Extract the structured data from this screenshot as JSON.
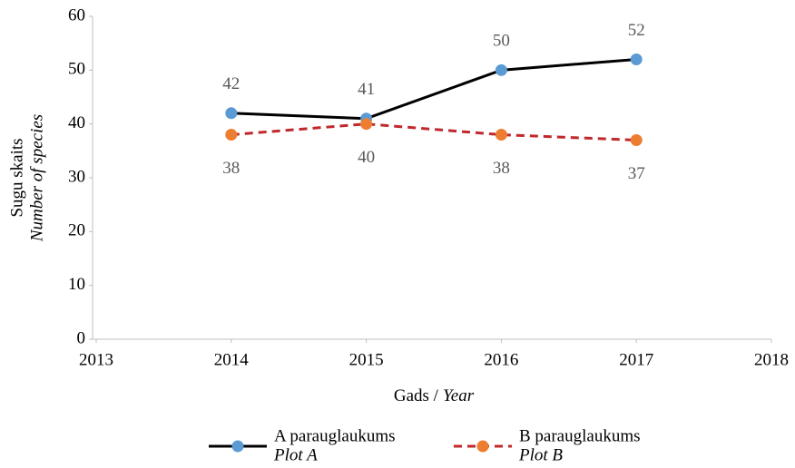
{
  "chart_data": {
    "type": "line",
    "ylabel": [
      "Sugu skaits",
      "Number of species"
    ],
    "xlabel": [
      "Gads /",
      "Year"
    ],
    "x": [
      2014,
      2015,
      2016,
      2017
    ],
    "xlim": [
      2013,
      2018
    ],
    "xticks": [
      2013,
      2014,
      2015,
      2016,
      2017,
      2018
    ],
    "ylim": [
      0,
      60
    ],
    "yticks": [
      0,
      10,
      20,
      30,
      40,
      50,
      60
    ],
    "grid": false,
    "legend": "bottom",
    "series": [
      {
        "name": "A parauglaukums",
        "subname": "Plot A",
        "color": "#000000",
        "marker_color": "#5b9bd5",
        "dash": false,
        "label_position": "above",
        "values": [
          42,
          41,
          50,
          52
        ]
      },
      {
        "name": "B parauglaukums",
        "subname": "Plot B",
        "color": "#c0282d",
        "marker_color": "#ed7d31",
        "dash": true,
        "label_position": "below",
        "values": [
          38,
          40,
          38,
          37
        ]
      }
    ]
  }
}
